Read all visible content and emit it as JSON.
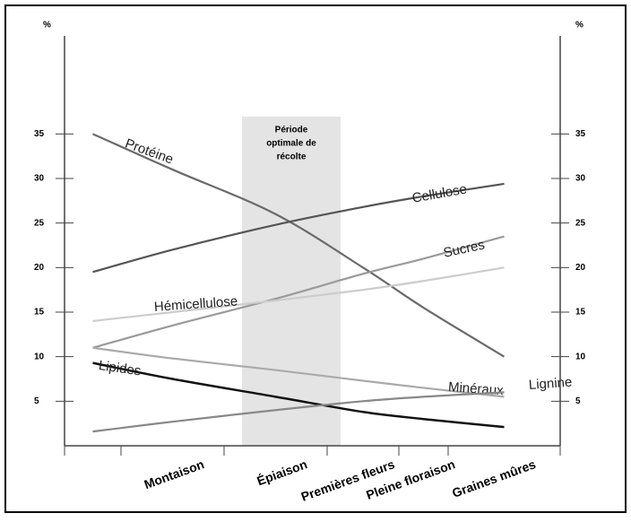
{
  "chart_data": {
    "type": "line",
    "y_unit": "%",
    "annotation": [
      "Période",
      "optimale de",
      "récolte"
    ],
    "categories": [
      null,
      "Montaison",
      "Épiaison",
      "Premières fleurs",
      "Pleine floraison",
      "Graines mûres"
    ],
    "series": [
      {
        "name": "Protéine",
        "color": "#6a6a6a",
        "values": [
          35,
          31,
          26,
          20,
          15.5,
          10
        ]
      },
      {
        "name": "Cellulose",
        "color": "#555555",
        "values": [
          19.5,
          22,
          24.8,
          26.8,
          28,
          29.4
        ]
      },
      {
        "name": "Sucres",
        "color": "#9a9a9a",
        "values": [
          11,
          13.5,
          16.5,
          19.3,
          21,
          23.5
        ]
      },
      {
        "name": "Hémicellulose",
        "color": "#cccccc",
        "values": [
          14,
          15,
          16.3,
          17.5,
          18.5,
          20
        ]
      },
      {
        "name": "Minéraux",
        "color": "#aaaaaa",
        "values": [
          11,
          9.8,
          8.5,
          7.3,
          6.5,
          5.5
        ]
      },
      {
        "name": "Lipides",
        "color": "#111111",
        "values": [
          9.3,
          7.5,
          5.5,
          3.8,
          3,
          2.1
        ]
      },
      {
        "name": "Lignine",
        "color": "#888888",
        "values": [
          1.6,
          2.7,
          4,
          5,
          5.5,
          6
        ]
      }
    ],
    "ylim": [
      0,
      45
    ],
    "yticks": [
      5,
      10,
      15,
      20,
      25,
      30,
      35
    ]
  }
}
